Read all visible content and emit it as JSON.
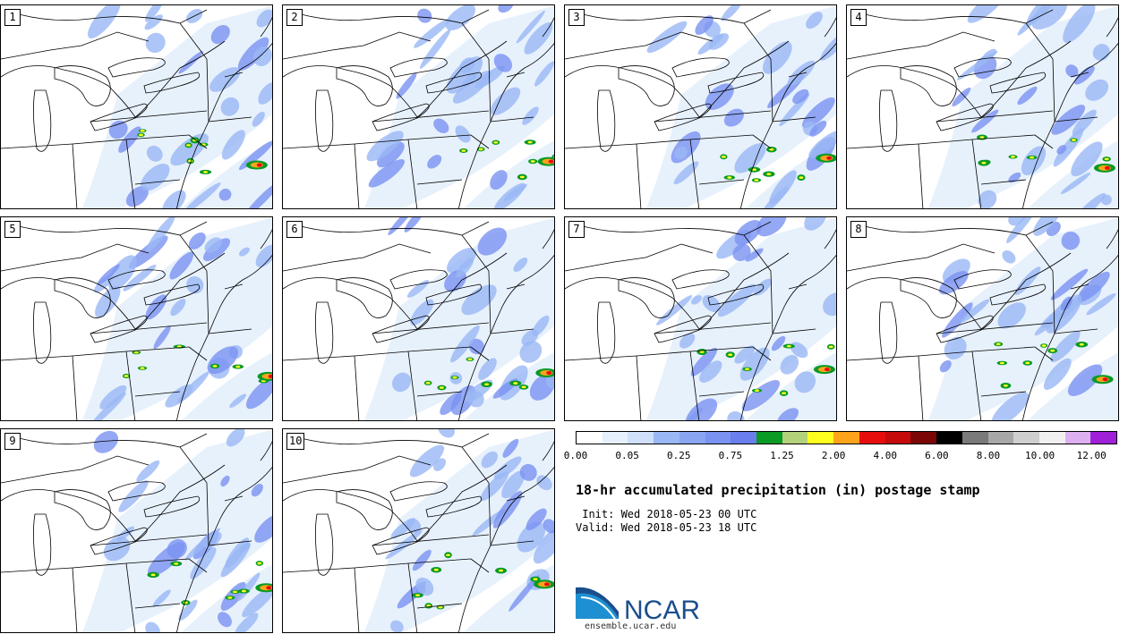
{
  "panels": [
    {
      "label": "1"
    },
    {
      "label": "2"
    },
    {
      "label": "3"
    },
    {
      "label": "4"
    },
    {
      "label": "5"
    },
    {
      "label": "6"
    },
    {
      "label": "7"
    },
    {
      "label": "8"
    },
    {
      "label": "9"
    },
    {
      "label": "10"
    }
  ],
  "colorbar": {
    "colors": [
      "#ffffff",
      "#e6f0fc",
      "#d0e0fb",
      "#9ab8f5",
      "#8aa6f3",
      "#7a92f1",
      "#6a7eee",
      "#0a9a26",
      "#b4d27a",
      "#ffff1f",
      "#ffa41a",
      "#e80d0d",
      "#c40a0a",
      "#7a0606",
      "#000000",
      "#7a7a7a",
      "#a8a8a8",
      "#cfcfcf",
      "#f0f0f0",
      "#ddb0f2",
      "#a020d8"
    ],
    "tick_labels": [
      "0.00",
      "0.05",
      "0.25",
      "0.75",
      "1.25",
      "2.00",
      "4.00",
      "6.00",
      "8.00",
      "10.00",
      "12.00"
    ]
  },
  "title": "18-hr accumulated precipitation (in) postage stamp",
  "init_line": " Init: Wed 2018-05-23 00 UTC",
  "valid_line": "Valid: Wed 2018-05-23 18 UTC",
  "logo": {
    "text": "NCAR",
    "color": "#1a4e8c",
    "accent": "#1e8fd0"
  },
  "website": "ensemble.ucar.edu"
}
